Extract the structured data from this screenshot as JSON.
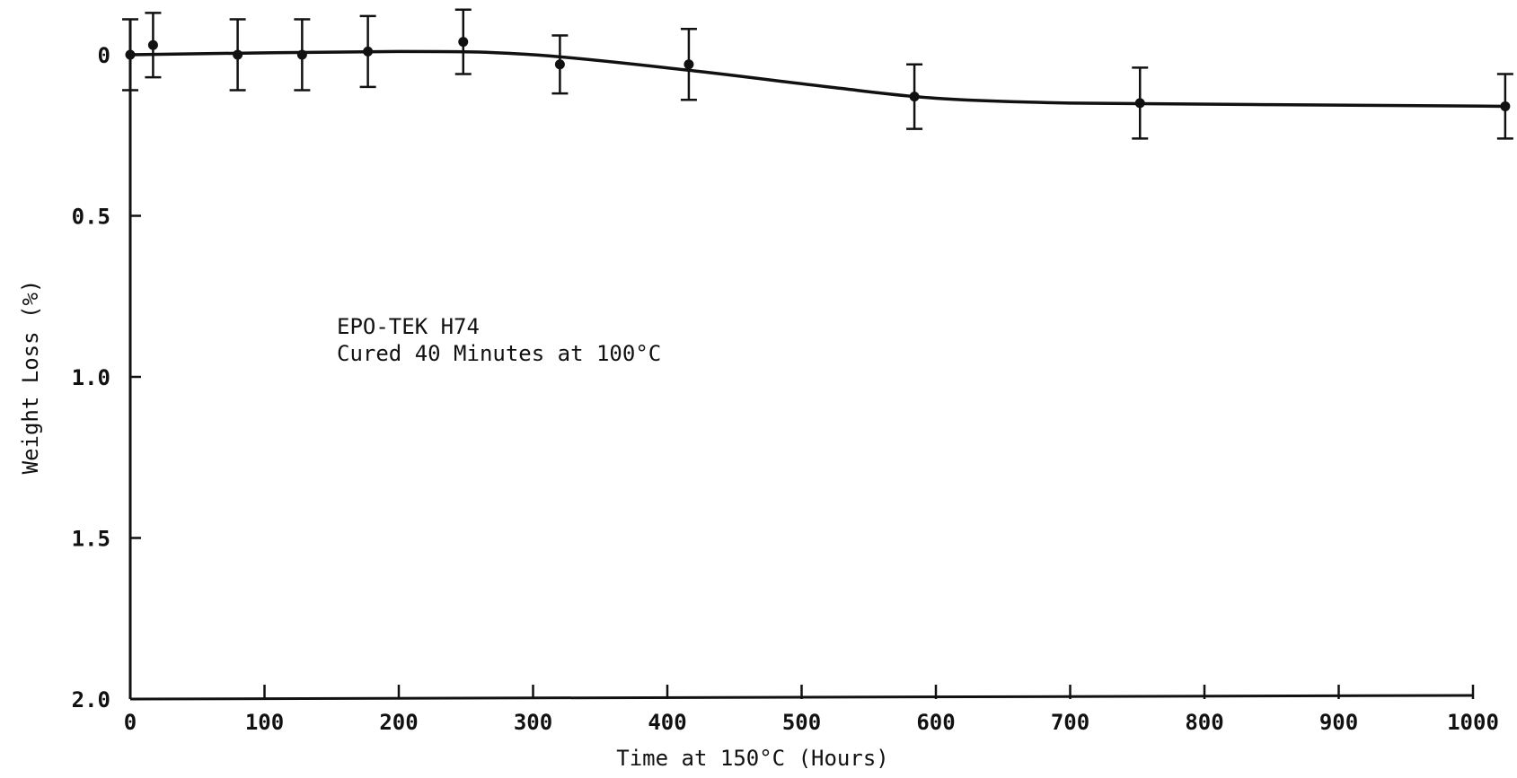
{
  "chart_data": {
    "type": "line",
    "title": "",
    "xlabel": "Time at 150°C (Hours)",
    "ylabel": "Weight Loss (%)",
    "xlim": [
      0,
      1000
    ],
    "ylim": [
      0,
      2.0
    ],
    "y_inverted": true,
    "grid": false,
    "x_ticks": [
      0,
      100,
      200,
      300,
      400,
      500,
      600,
      700,
      800,
      900,
      1000
    ],
    "x_tick_labels": [
      "0",
      "100",
      "200",
      "300",
      "400",
      "500",
      "600",
      "700",
      "800",
      "900",
      "1000"
    ],
    "y_ticks": [
      0,
      0.5,
      1.0,
      1.5,
      2.0
    ],
    "y_tick_labels": [
      "0",
      "0.5",
      "1.0",
      "1.5",
      "2.0"
    ],
    "annotation": [
      "EPO-TEK H74",
      "Cured 40 Minutes at 100°C"
    ],
    "series": [
      {
        "points": [
          {
            "x": 0,
            "y": 0.0,
            "err": 0.11
          },
          {
            "x": 17,
            "y": -0.03,
            "err": 0.1
          },
          {
            "x": 80,
            "y": 0.0,
            "err": 0.11
          },
          {
            "x": 128,
            "y": 0.0,
            "err": 0.11
          },
          {
            "x": 177,
            "y": -0.01,
            "err": 0.11
          },
          {
            "x": 248,
            "y": -0.04,
            "err": 0.1
          },
          {
            "x": 320,
            "y": 0.03,
            "err": 0.09
          },
          {
            "x": 416,
            "y": 0.03,
            "err": 0.11
          },
          {
            "x": 584,
            "y": 0.13,
            "err": 0.1
          },
          {
            "x": 752,
            "y": 0.15,
            "err": 0.11
          },
          {
            "x": 1024,
            "y": 0.16,
            "err": 0.1
          }
        ],
        "fit_curve": [
          {
            "x": 0,
            "y": 0.0
          },
          {
            "x": 200,
            "y": -0.01
          },
          {
            "x": 300,
            "y": 0.0
          },
          {
            "x": 420,
            "y": 0.05
          },
          {
            "x": 520,
            "y": 0.1
          },
          {
            "x": 600,
            "y": 0.135
          },
          {
            "x": 700,
            "y": 0.15
          },
          {
            "x": 850,
            "y": 0.155
          },
          {
            "x": 1024,
            "y": 0.16
          }
        ]
      }
    ]
  }
}
